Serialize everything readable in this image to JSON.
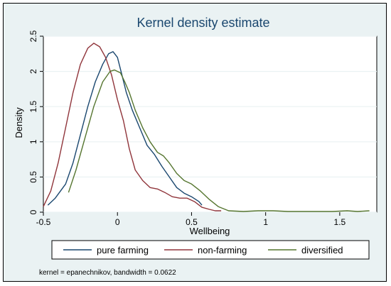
{
  "chart_data": {
    "type": "line",
    "title": "Kernel density estimate",
    "xlabel": "Wellbeing",
    "ylabel": "Density",
    "xlim": [
      -0.5,
      1.75
    ],
    "ylim": [
      0,
      2.5
    ],
    "x_ticks": [
      -0.5,
      0,
      0.5,
      1,
      1.5
    ],
    "x_tick_labels": [
      "-0.5",
      "0",
      "0.5",
      "1",
      "1.5"
    ],
    "y_ticks": [
      0,
      0.5,
      1,
      1.5,
      2,
      2.5
    ],
    "y_tick_labels": [
      "0",
      "0.5",
      "1",
      "1.5",
      "2",
      "2.5"
    ],
    "grid": true,
    "legend_position": "bottom",
    "note": "kernel = epanechnikov, bandwidth = 0.0622",
    "series": [
      {
        "name": "pure farming",
        "color": "#1a476f",
        "points": [
          [
            -0.47,
            0.1
          ],
          [
            -0.42,
            0.2
          ],
          [
            -0.35,
            0.4
          ],
          [
            -0.3,
            0.7
          ],
          [
            -0.25,
            1.1
          ],
          [
            -0.2,
            1.5
          ],
          [
            -0.15,
            1.85
          ],
          [
            -0.1,
            2.1
          ],
          [
            -0.06,
            2.25
          ],
          [
            -0.03,
            2.28
          ],
          [
            0.0,
            2.2
          ],
          [
            0.03,
            1.95
          ],
          [
            0.06,
            1.7
          ],
          [
            0.1,
            1.45
          ],
          [
            0.15,
            1.2
          ],
          [
            0.2,
            0.95
          ],
          [
            0.25,
            0.82
          ],
          [
            0.3,
            0.65
          ],
          [
            0.35,
            0.5
          ],
          [
            0.4,
            0.35
          ],
          [
            0.45,
            0.27
          ],
          [
            0.5,
            0.22
          ],
          [
            0.55,
            0.15
          ],
          [
            0.57,
            0.1
          ]
        ]
      },
      {
        "name": "non-farming",
        "color": "#90353b",
        "points": [
          [
            -0.5,
            0.08
          ],
          [
            -0.45,
            0.3
          ],
          [
            -0.4,
            0.7
          ],
          [
            -0.35,
            1.2
          ],
          [
            -0.3,
            1.7
          ],
          [
            -0.25,
            2.1
          ],
          [
            -0.2,
            2.33
          ],
          [
            -0.16,
            2.4
          ],
          [
            -0.12,
            2.35
          ],
          [
            -0.08,
            2.2
          ],
          [
            -0.04,
            1.95
          ],
          [
            0.0,
            1.6
          ],
          [
            0.04,
            1.3
          ],
          [
            0.08,
            0.9
          ],
          [
            0.12,
            0.6
          ],
          [
            0.17,
            0.45
          ],
          [
            0.22,
            0.35
          ],
          [
            0.27,
            0.33
          ],
          [
            0.32,
            0.28
          ],
          [
            0.37,
            0.22
          ],
          [
            0.42,
            0.2
          ],
          [
            0.47,
            0.2
          ],
          [
            0.52,
            0.15
          ],
          [
            0.57,
            0.07
          ],
          [
            0.62,
            0.04
          ],
          [
            0.66,
            0.02
          ],
          [
            0.7,
            0.02
          ]
        ]
      },
      {
        "name": "diversified",
        "color": "#55752f",
        "points": [
          [
            -0.33,
            0.28
          ],
          [
            -0.28,
            0.6
          ],
          [
            -0.22,
            1.05
          ],
          [
            -0.16,
            1.5
          ],
          [
            -0.1,
            1.85
          ],
          [
            -0.05,
            2.0
          ],
          [
            -0.02,
            2.02
          ],
          [
            0.02,
            1.98
          ],
          [
            0.05,
            1.85
          ],
          [
            0.08,
            1.7
          ],
          [
            0.12,
            1.45
          ],
          [
            0.17,
            1.2
          ],
          [
            0.22,
            1.0
          ],
          [
            0.27,
            0.85
          ],
          [
            0.31,
            0.8
          ],
          [
            0.35,
            0.7
          ],
          [
            0.4,
            0.55
          ],
          [
            0.45,
            0.45
          ],
          [
            0.5,
            0.4
          ],
          [
            0.56,
            0.3
          ],
          [
            0.62,
            0.18
          ],
          [
            0.68,
            0.08
          ],
          [
            0.75,
            0.02
          ],
          [
            0.85,
            0.01
          ],
          [
            0.95,
            0.02
          ],
          [
            1.05,
            0.02
          ],
          [
            1.15,
            0.01
          ],
          [
            1.3,
            0.01
          ],
          [
            1.45,
            0.01
          ],
          [
            1.55,
            0.02
          ],
          [
            1.62,
            0.01
          ],
          [
            1.7,
            0.02
          ]
        ]
      }
    ]
  }
}
